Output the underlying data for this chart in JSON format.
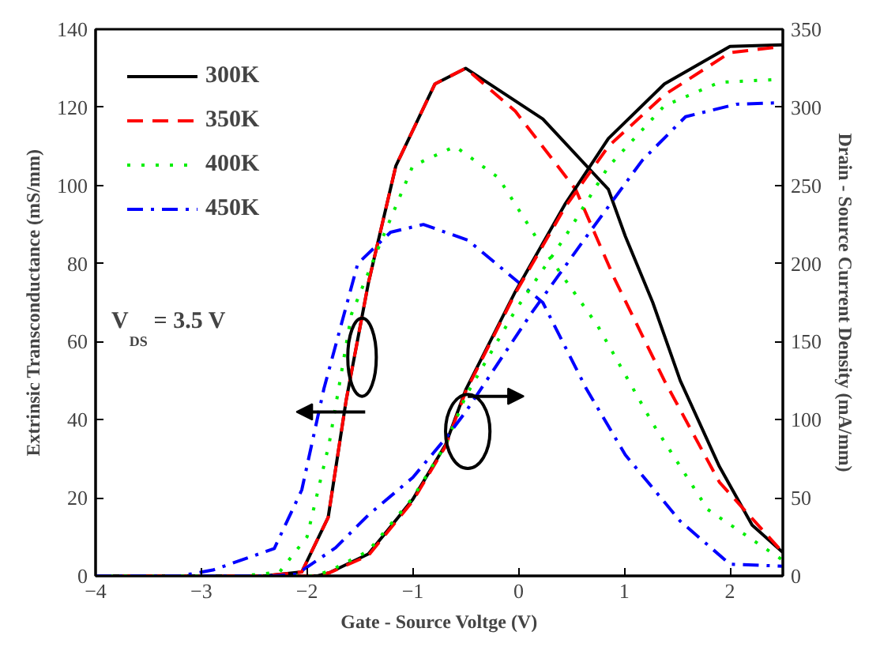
{
  "chart_data": {
    "type": "line",
    "xlabel": "Gate - Source Voltge (V)",
    "ylabel": "Extrinsic Transconductance (mS/mm)",
    "y2label": "Drain - Source Current Density (mA/mm)",
    "xlim": [
      -4,
      2.5
    ],
    "xticks": [
      -4,
      -3,
      -2,
      -1,
      0,
      1,
      2
    ],
    "ylim": [
      0,
      140
    ],
    "yticks": [
      0,
      20,
      40,
      60,
      80,
      100,
      120,
      140
    ],
    "y2lim": [
      0,
      350
    ],
    "y2ticks": [
      0,
      50,
      100,
      150,
      200,
      250,
      300,
      350
    ],
    "grid": false,
    "legend": "top left",
    "annotations": [
      "V$_{DS}$ = 3.5 V"
    ],
    "series": [
      {
        "name": "300K",
        "color": "#000000",
        "line_style": "solid",
        "x": [
          -4,
          -2.4,
          -2.05,
          -1.8,
          -1.63,
          -1.42,
          -1.16,
          -0.79,
          -0.5,
          0.23,
          0.85,
          1.01,
          1.27,
          1.53,
          1.9,
          2.21,
          2.5
        ],
        "values": [
          0,
          0,
          1,
          15,
          45,
          75,
          105,
          126,
          130,
          117,
          99,
          87,
          70,
          50,
          28,
          13,
          6
        ]
      },
      {
        "name": "350K",
        "color": "#ff0000",
        "line_style": "dashed",
        "x": [
          -4,
          -2.4,
          -2.05,
          -1.8,
          -1.63,
          -1.42,
          -1.16,
          -0.79,
          -0.5,
          -0.03,
          0.54,
          0.91,
          1.38,
          1.9,
          2.5
        ],
        "values": [
          0,
          0,
          1,
          15,
          45,
          75,
          105,
          126,
          130,
          119,
          99,
          76,
          50,
          24,
          6
        ]
      },
      {
        "name": "400K",
        "color": "#00ee00",
        "line_style": "dotted",
        "x": [
          -4,
          -2.6,
          -2.26,
          -2.0,
          -1.79,
          -1.58,
          -1.31,
          -1.0,
          -0.6,
          -0.19,
          0.23,
          0.75,
          1.27,
          1.79,
          2.5
        ],
        "values": [
          0,
          0,
          1,
          10,
          34,
          67,
          85,
          105,
          110,
          102,
          84,
          64,
          39,
          17,
          4
        ]
      },
      {
        "name": "450K",
        "color": "#0000ff",
        "line_style": "dashdot",
        "x": [
          -4,
          -3.2,
          -2.89,
          -2.31,
          -2.05,
          -1.84,
          -1.52,
          -1.21,
          -0.9,
          -0.48,
          0.23,
          0.64,
          1.01,
          1.53,
          2.0,
          2.5
        ],
        "values": [
          0,
          0,
          1.5,
          7,
          22,
          48,
          80,
          88,
          90,
          86,
          70,
          48,
          31,
          14,
          3,
          2.5
        ]
      },
      {
        "color": "#000000",
        "line_style": "solid",
        "axis": "y2",
        "x": [
          -4,
          -1.9,
          -1.79,
          -1.42,
          -1.0,
          -0.69,
          -0.5,
          -0.03,
          0.44,
          0.85,
          1.38,
          2.0,
          2.5
        ],
        "values": [
          0,
          0,
          2,
          14,
          49,
          84,
          119,
          182,
          238,
          280,
          315,
          339,
          340
        ]
      },
      {
        "color": "#ff0000",
        "line_style": "dashed",
        "axis": "y2",
        "x": [
          -4,
          -1.9,
          -1.79,
          -1.42,
          -1.0,
          -0.69,
          -0.5,
          -0.03,
          0.44,
          0.85,
          1.38,
          2.0,
          2.5
        ],
        "values": [
          0,
          0,
          2,
          13,
          48,
          83,
          118,
          181,
          236,
          275,
          308,
          335,
          339
        ]
      },
      {
        "color": "#00ee00",
        "line_style": "dotted",
        "axis": "y2",
        "x": [
          -4,
          -1.95,
          -1.79,
          -1.42,
          -1.0,
          -0.69,
          -0.5,
          -0.03,
          0.44,
          0.85,
          1.38,
          1.9,
          2.5
        ],
        "values": [
          0,
          0,
          3,
          16,
          50,
          84,
          115,
          170,
          217,
          262,
          301,
          316,
          318
        ]
      },
      {
        "color": "#0000ff",
        "line_style": "dashdot",
        "axis": "y2",
        "x": [
          -4,
          -2.3,
          -2.1,
          -1.73,
          -1.42,
          -1.0,
          -0.69,
          -0.5,
          0.12,
          0.64,
          1.17,
          1.58,
          2.06,
          2.5
        ],
        "values": [
          0,
          0,
          1,
          18,
          39,
          63,
          88,
          105,
          168,
          217,
          266,
          294,
          302,
          303
        ]
      }
    ]
  }
}
